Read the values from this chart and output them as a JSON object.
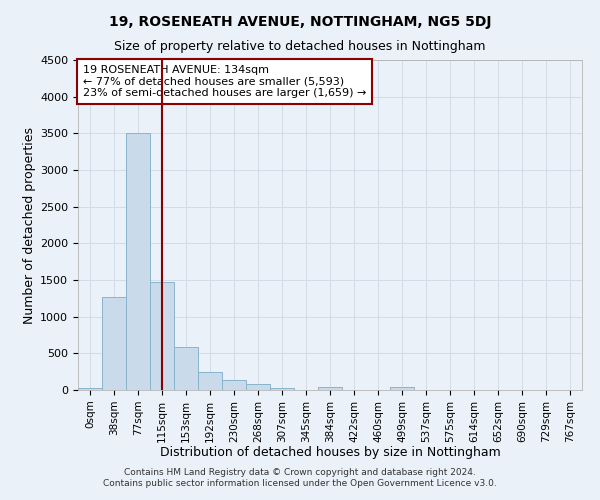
{
  "title": "19, ROSENEATH AVENUE, NOTTINGHAM, NG5 5DJ",
  "subtitle": "Size of property relative to detached houses in Nottingham",
  "xlabel": "Distribution of detached houses by size in Nottingham",
  "ylabel": "Number of detached properties",
  "bar_labels": [
    "0sqm",
    "38sqm",
    "77sqm",
    "115sqm",
    "153sqm",
    "192sqm",
    "230sqm",
    "268sqm",
    "307sqm",
    "345sqm",
    "384sqm",
    "422sqm",
    "460sqm",
    "499sqm",
    "537sqm",
    "575sqm",
    "614sqm",
    "652sqm",
    "690sqm",
    "729sqm",
    "767sqm"
  ],
  "bar_values": [
    30,
    1270,
    3500,
    1470,
    580,
    250,
    140,
    80,
    30,
    0,
    40,
    0,
    0,
    40,
    0,
    0,
    0,
    0,
    0,
    0,
    0
  ],
  "bar_color": "#c9daea",
  "bar_edgecolor": "#8ab4cc",
  "grid_color": "#d0dce8",
  "background_color": "#eaf1f8",
  "vline_x_index": 3.0,
  "vline_color": "#8b0000",
  "annotation_box_text": "19 ROSENEATH AVENUE: 134sqm\n← 77% of detached houses are smaller (5,593)\n23% of semi-detached houses are larger (1,659) →",
  "annotation_box_color": "#8b0000",
  "ylim": [
    0,
    4500
  ],
  "yticks": [
    0,
    500,
    1000,
    1500,
    2000,
    2500,
    3000,
    3500,
    4000,
    4500
  ],
  "footer_line1": "Contains HM Land Registry data © Crown copyright and database right 2024.",
  "footer_line2": "Contains public sector information licensed under the Open Government Licence v3.0."
}
